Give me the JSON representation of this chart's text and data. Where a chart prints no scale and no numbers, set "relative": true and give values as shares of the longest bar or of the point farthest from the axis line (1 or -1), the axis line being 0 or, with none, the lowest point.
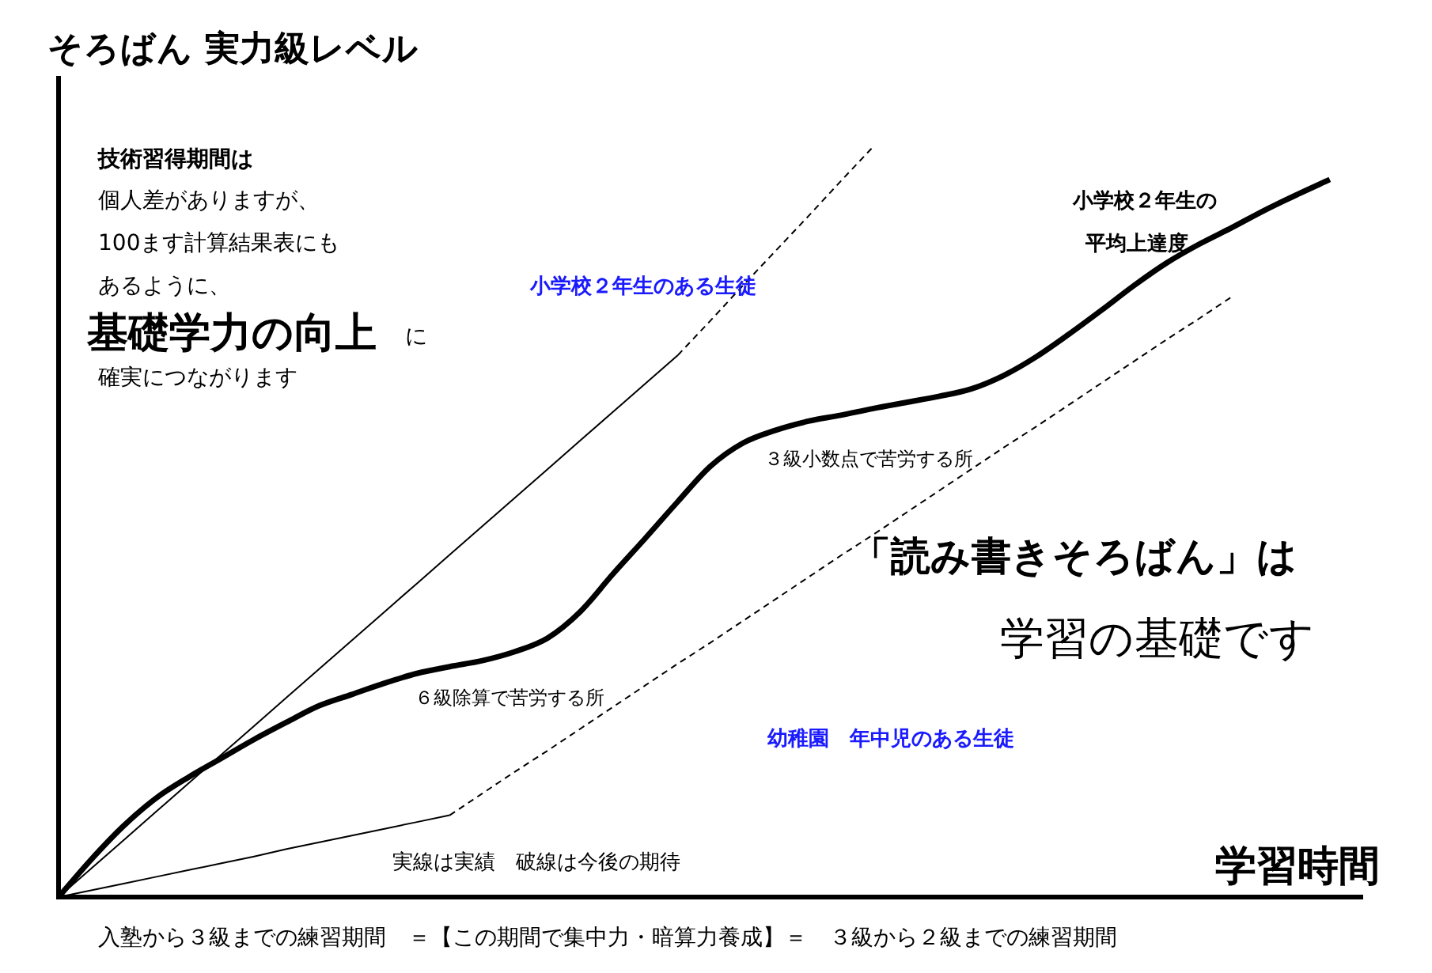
{
  "chart_data": {
    "type": "line",
    "relative": true,
    "xlabel": "学習時間",
    "ylabel": "そろばん 実力級レベル",
    "marker": "none",
    "grid": false,
    "legend": false,
    "categories": [
      null,
      null,
      null,
      null,
      null,
      null,
      null,
      null,
      null,
      null,
      null,
      null,
      null,
      null,
      null,
      null,
      null,
      null,
      null,
      null,
      null,
      null,
      null,
      null,
      null,
      null,
      null,
      null,
      null,
      null,
      null,
      null,
      null,
      null,
      null,
      null,
      null,
      null,
      null,
      null,
      null
    ],
    "series": [
      {
        "color": "#000000",
        "line_style": "solid",
        "values": [
          0,
          0.038,
          0.076,
          0.114,
          0.152,
          0.19,
          0.228,
          0.266,
          0.304,
          0.342,
          0.38,
          0.418,
          0.456,
          0.494,
          0.532,
          0.57,
          0.608,
          0.646,
          0.684,
          0.722,
          null,
          null,
          null,
          null,
          null,
          null,
          null,
          null,
          null,
          null,
          null,
          null,
          null,
          null,
          null,
          null,
          null,
          null,
          null,
          null,
          null
        ]
      },
      {
        "color": "#000000",
        "line_style": "dashed",
        "values": [
          null,
          null,
          null,
          null,
          null,
          null,
          null,
          null,
          null,
          null,
          null,
          null,
          null,
          null,
          null,
          null,
          null,
          null,
          null,
          0.722,
          0.768,
          0.815,
          0.861,
          0.907,
          0.954,
          1.0,
          null,
          null,
          null,
          null,
          null,
          null,
          null,
          null,
          null,
          null,
          null,
          null,
          null,
          null,
          null
        ]
      },
      {
        "color": "#000000",
        "line_style": "solid",
        "values": [
          0,
          0.05,
          0.095,
          0.132,
          0.16,
          0.185,
          0.21,
          0.233,
          0.255,
          0.27,
          0.285,
          0.298,
          0.307,
          0.315,
          0.327,
          0.345,
          0.38,
          0.43,
          0.478,
          0.527,
          0.574,
          0.605,
          0.622,
          0.634,
          0.642,
          0.651,
          0.659,
          0.667,
          0.677,
          0.695,
          0.72,
          0.75,
          0.782,
          0.815,
          0.845,
          0.87,
          0.892,
          0.915,
          0.936,
          0.956,
          null
        ]
      },
      {
        "color": "#000000",
        "line_style": "solid",
        "values": [
          0,
          0.009,
          0.018,
          0.027,
          0.036,
          0.045,
          0.054,
          0.064,
          0.073,
          0.082,
          0.091,
          0.1,
          0.109,
          null,
          null,
          null,
          null,
          null,
          null,
          null,
          null,
          null,
          null,
          null,
          null,
          null,
          null,
          null,
          null,
          null,
          null,
          null,
          null,
          null,
          null,
          null,
          null,
          null,
          null,
          null,
          null
        ]
      },
      {
        "color": "#000000",
        "line_style": "dashed",
        "values": [
          null,
          null,
          null,
          null,
          null,
          null,
          null,
          null,
          null,
          null,
          null,
          null,
          0.109,
          0.138,
          0.167,
          0.195,
          0.224,
          0.253,
          0.282,
          0.311,
          0.339,
          0.368,
          0.397,
          0.426,
          0.455,
          0.483,
          0.512,
          0.541,
          0.57,
          0.599,
          0.627,
          0.656,
          0.685,
          0.714,
          0.743,
          0.771,
          0.8,
          null,
          null,
          null,
          null
        ]
      }
    ],
    "annotations": [
      "技術習得期間は",
      "個人差がありますが、",
      "100ます計算結果表にも",
      "あるように、",
      "基礎学力の向上",
      "に",
      "確実につながります",
      "小学校２年生のある生徒",
      "小学校２年生の",
      "平均上達度",
      "３級小数点で苦労する所",
      "「読み書きそろばん」は",
      "学習の基礎です",
      "６級除算で苦労する所",
      "幼稚園　年中児のある生徒",
      "実線は実績　破線は今後の期待",
      "入塾から３級までの練習期間　＝【この期間で集中力・暗算力養成】＝　３級から２級までの練習期間"
    ]
  }
}
